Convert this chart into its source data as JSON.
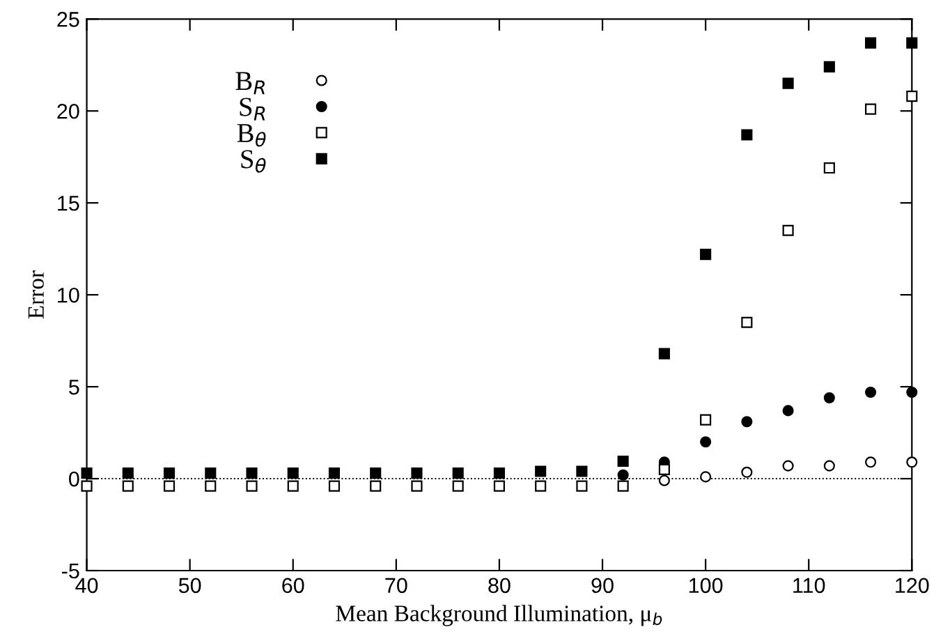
{
  "chart_data": {
    "type": "scatter",
    "xlabel": "Mean Background Illumination, μ$_{b}$",
    "ylabel": "Error",
    "x": [
      40,
      44,
      48,
      52,
      56,
      60,
      64,
      68,
      72,
      76,
      80,
      84,
      88,
      92,
      96,
      100,
      104,
      108,
      112,
      116,
      120
    ],
    "xlim": [
      40,
      120
    ],
    "xticks": [
      40,
      50,
      60,
      70,
      80,
      90,
      100,
      110,
      120
    ],
    "ylim": [
      -5,
      25
    ],
    "yticks": [
      -5,
      0,
      5,
      10,
      15,
      20,
      25
    ],
    "grid": false,
    "legend": "top left",
    "ref_lines": [
      {
        "axis": "y",
        "value": 0,
        "color": "#000000",
        "line_style": "dotted"
      }
    ],
    "series": [
      {
        "name": "B$_{R}$",
        "color": "#ffffff",
        "marker": "circle",
        "values": [
          null,
          null,
          null,
          null,
          null,
          null,
          null,
          null,
          null,
          null,
          null,
          null,
          null,
          null,
          -0.1,
          0.1,
          0.35,
          0.7,
          0.7,
          0.9,
          0.9
        ]
      },
      {
        "name": "S$_{R}$",
        "color": "#000000",
        "marker": "circle",
        "values": [
          null,
          null,
          null,
          null,
          null,
          null,
          null,
          null,
          null,
          null,
          null,
          null,
          null,
          0.2,
          0.9,
          2.0,
          3.1,
          3.7,
          4.4,
          4.7,
          4.7
        ]
      },
      {
        "name": "B$_{θ}$",
        "color": "#ffffff",
        "marker": "square",
        "values": [
          -0.4,
          -0.4,
          -0.4,
          -0.4,
          -0.4,
          -0.4,
          -0.4,
          -0.4,
          -0.4,
          -0.4,
          -0.4,
          -0.4,
          -0.4,
          -0.4,
          0.5,
          3.2,
          8.5,
          13.5,
          16.9,
          20.1,
          20.8
        ]
      },
      {
        "name": "S$_{θ}$",
        "color": "#000000",
        "marker": "square",
        "values": [
          0.3,
          0.3,
          0.3,
          0.3,
          0.3,
          0.3,
          0.3,
          0.3,
          0.3,
          0.3,
          0.3,
          0.4,
          0.4,
          0.95,
          6.8,
          12.2,
          18.7,
          21.5,
          22.4,
          23.7,
          23.7
        ]
      }
    ]
  }
}
